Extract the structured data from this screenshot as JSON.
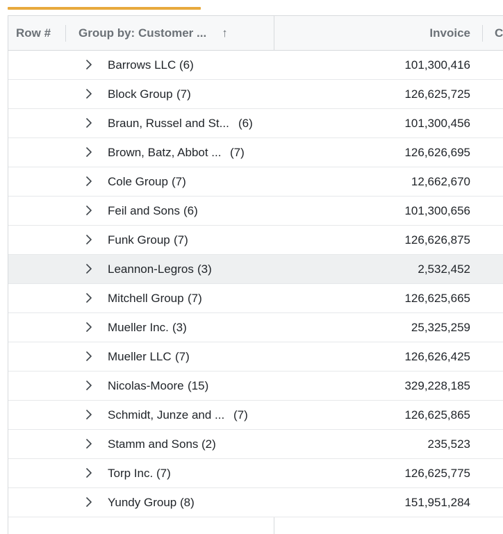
{
  "progress": {
    "fraction": 0.39
  },
  "header": {
    "row_number": "Row #",
    "group_by": "Group by: Customer ...",
    "sort_glyph": "↑",
    "invoice": "Invoice",
    "next_col": "C"
  },
  "rows": [
    {
      "name": "Barrows LLC",
      "count": "(6)",
      "invoice": "101,300,416"
    },
    {
      "name": "Block Group",
      "count": "(7)",
      "invoice": "126,625,725"
    },
    {
      "name": "Braun, Russel and St...",
      "count": "(6)",
      "invoice": "101,300,456"
    },
    {
      "name": "Brown, Batz, Abbot ...",
      "count": "(7)",
      "invoice": "126,626,695"
    },
    {
      "name": "Cole Group",
      "count": "(7)",
      "invoice": "12,662,670"
    },
    {
      "name": "Feil and Sons",
      "count": "(6)",
      "invoice": "101,300,656"
    },
    {
      "name": "Funk Group",
      "count": "(7)",
      "invoice": "126,626,875"
    },
    {
      "name": "Leannon-Legros",
      "count": "(3)",
      "invoice": "2,532,452"
    },
    {
      "name": "Mitchell Group",
      "count": "(7)",
      "invoice": "126,625,665"
    },
    {
      "name": "Mueller Inc.",
      "count": "(3)",
      "invoice": "25,325,259"
    },
    {
      "name": "Mueller LLC",
      "count": "(7)",
      "invoice": "126,626,425"
    },
    {
      "name": "Nicolas-Moore",
      "count": "(15)",
      "invoice": "329,228,185"
    },
    {
      "name": "Schmidt, Junze and ...",
      "count": "(7)",
      "invoice": "126,625,865"
    },
    {
      "name": "Stamm and Sons",
      "count": "(2)",
      "invoice": "235,523"
    },
    {
      "name": "Torp Inc.",
      "count": "(7)",
      "invoice": "126,625,775"
    },
    {
      "name": "Yundy Group",
      "count": "(8)",
      "invoice": "151,951,284"
    }
  ],
  "hover_row_index": 7,
  "icons": {
    "expand": "chevron-right-icon",
    "sort": "arrow-up-icon"
  },
  "colors": {
    "progress": "#e8a93d",
    "hover_row": "#eef0f1",
    "header_bg": "#f7f8f9"
  }
}
